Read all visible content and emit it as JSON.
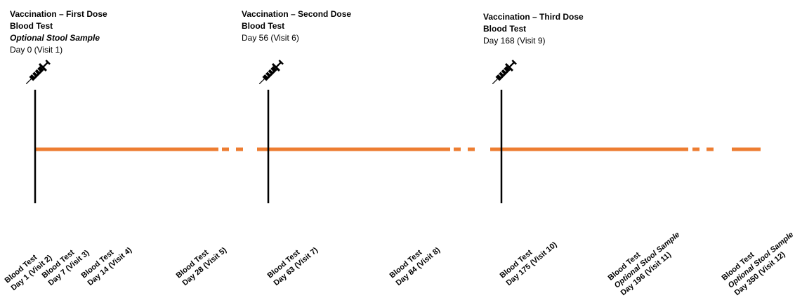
{
  "doses": [
    {
      "title": "Vaccination – First Dose",
      "lines": [
        {
          "text": "Blood Test",
          "style": "bold"
        },
        {
          "text": "Optional Stool Sample",
          "style": "italic"
        },
        {
          "text": "Day 0 (Visit 1)",
          "style": "normal"
        }
      ],
      "icon": "syringe-icon"
    },
    {
      "title": "Vaccination – Second Dose",
      "lines": [
        {
          "text": "Blood Test",
          "style": "bold"
        },
        {
          "text": "Day 56 (Visit 6)",
          "style": "normal"
        }
      ],
      "icon": "syringe-icon"
    },
    {
      "title": "Vaccination – Third  Dose",
      "lines": [
        {
          "text": "Blood Test",
          "style": "bold"
        },
        {
          "text": "Day 168 (Visit 9)",
          "style": "normal"
        }
      ],
      "icon": "syringe-icon"
    }
  ],
  "visits": [
    {
      "lines": [
        "Blood Test",
        "Day 1 (Visit 2)"
      ]
    },
    {
      "lines": [
        "Blood Test",
        "Day 7 (Visit 3)"
      ]
    },
    {
      "lines": [
        "Blood Test",
        "Day 14 (Visit 4)"
      ]
    },
    {
      "lines": [
        "Blood Test",
        "Day 28  (Visit 5)"
      ]
    },
    {
      "lines": [
        "Blood Test",
        "Day 63 (Visit 7)"
      ]
    },
    {
      "lines": [
        "Blood Test",
        "Day 84 (Visit 8)"
      ]
    },
    {
      "lines": [
        "Blood Test",
        "Day 175 (Visit 10)"
      ]
    },
    {
      "lines": [
        "Blood Test",
        "Optional Stool Sample",
        "Day 196 (Visit 11)"
      ]
    },
    {
      "lines": [
        "Blood Test",
        "Optional Stool Sample",
        "Day 350 (Visit 12)"
      ]
    }
  ],
  "colors": {
    "timeline": "#ED7D31",
    "marker": "#000000"
  }
}
